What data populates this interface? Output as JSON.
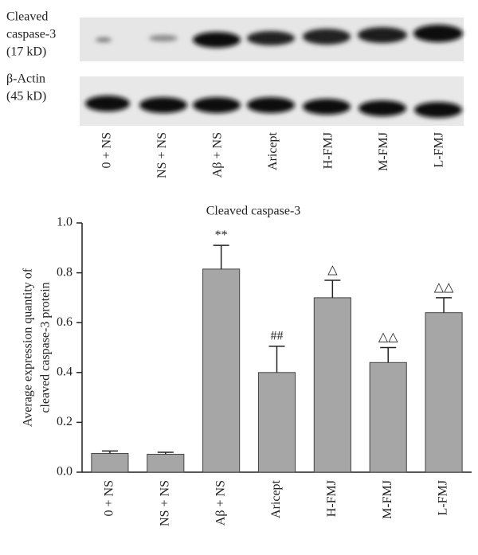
{
  "blot": {
    "rows": [
      {
        "lines": [
          "Cleaved",
          "caspase-3",
          "(17 kD)"
        ]
      },
      {
        "lines": [
          "β-Actin",
          "(45 kD)"
        ]
      }
    ]
  },
  "chart_data": {
    "type": "bar",
    "title": "Cleaved caspase-3",
    "ylabel": [
      "Average expression quantity of",
      "cleaved caspase-3 protein"
    ],
    "categories": [
      "0 + NS",
      "NS + NS",
      "Aβ + NS",
      "Aricept",
      "H-FMJ",
      "M-FMJ",
      "L-FMJ"
    ],
    "values": [
      0.075,
      0.072,
      0.815,
      0.4,
      0.7,
      0.44,
      0.64
    ],
    "errors": [
      0.01,
      0.008,
      0.095,
      0.105,
      0.07,
      0.06,
      0.06
    ],
    "annotations": [
      null,
      null,
      "**",
      "##",
      "△",
      "△△",
      "△△"
    ],
    "color": "#a6a6a6",
    "ylim": [
      0,
      1
    ],
    "yticks": [
      {
        "value": 0,
        "label": "0.0"
      },
      0.2,
      0.4,
      0.6,
      0.8,
      {
        "value": 1,
        "label": "1.0"
      }
    ]
  }
}
